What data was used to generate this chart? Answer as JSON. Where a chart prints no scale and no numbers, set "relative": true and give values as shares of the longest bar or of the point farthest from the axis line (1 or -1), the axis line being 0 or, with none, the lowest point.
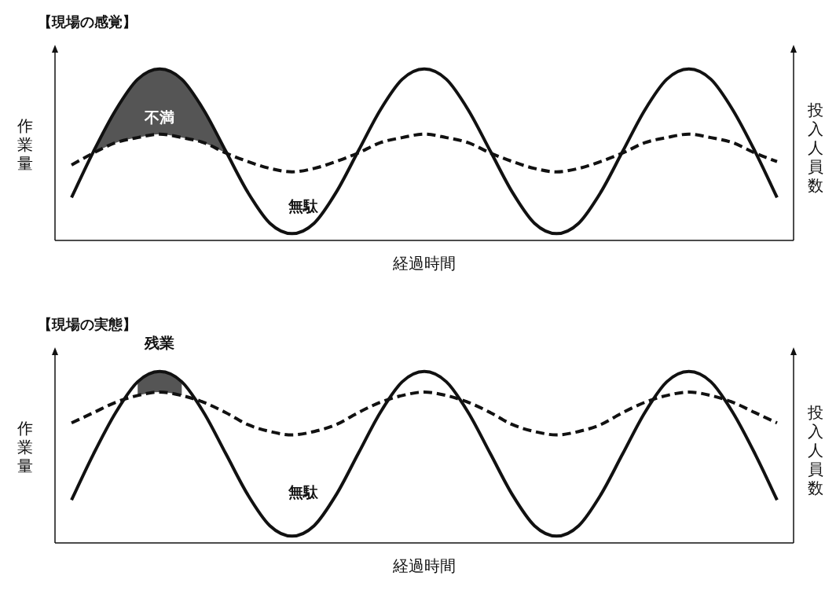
{
  "chart_data": [
    {
      "type": "line",
      "title": "【現場の感覚】",
      "xlabel": "経過時間",
      "ylabel": "作業量",
      "y2label": "投入人員数",
      "relative": true,
      "categories": [
        null,
        null,
        null,
        null,
        null,
        null,
        null,
        null,
        null,
        null,
        null,
        null,
        null,
        null,
        null,
        null,
        null,
        null,
        null,
        null,
        null,
        null,
        null,
        null,
        null,
        null,
        null,
        null,
        null,
        null,
        null,
        null,
        null
      ],
      "series": [
        {
          "color": "#111111",
          "line_style": "solid",
          "values": [
            0.25,
            0.52,
            0.76,
            0.94,
            1,
            0.94,
            0.76,
            0.52,
            0.28,
            0.1,
            0.04,
            0.1,
            0.28,
            0.52,
            0.76,
            0.94,
            1,
            0.94,
            0.76,
            0.52,
            0.28,
            0.1,
            0.04,
            0.1,
            0.28,
            0.52,
            0.76,
            0.94,
            1,
            0.94,
            0.76,
            0.52,
            0.25
          ]
        },
        {
          "color": "#111111",
          "line_style": "dashed",
          "values": [
            0.44,
            0.51,
            0.57,
            0.6,
            0.62,
            0.6,
            0.57,
            0.51,
            0.46,
            0.42,
            0.4,
            0.42,
            0.46,
            0.51,
            0.57,
            0.6,
            0.62,
            0.6,
            0.57,
            0.51,
            0.46,
            0.42,
            0.4,
            0.42,
            0.46,
            0.51,
            0.57,
            0.6,
            0.62,
            0.6,
            0.57,
            0.51,
            0.46
          ],
          "lower": [
            null,
            0.51,
            0.57,
            0.6,
            0.62,
            0.6,
            0.57,
            0.51,
            null,
            null,
            null,
            null,
            null,
            null,
            null,
            null,
            null,
            null,
            null,
            null,
            null,
            null,
            null,
            null,
            null,
            null,
            null,
            null,
            null,
            null,
            null,
            null,
            null
          ],
          "upper": [
            null,
            0.52,
            0.76,
            0.94,
            1,
            0.94,
            0.76,
            0.52,
            null,
            null,
            null,
            null,
            null,
            null,
            null,
            null,
            null,
            null,
            null,
            null,
            null,
            null,
            null,
            null,
            null,
            null,
            null,
            null,
            null,
            null,
            null,
            null,
            null
          ]
        }
      ],
      "annotations": [
        "不満",
        "無駄"
      ]
    },
    {
      "type": "line",
      "title": "【現場の実態】",
      "xlabel": "経過時間",
      "ylabel": "作業量",
      "y2label": "投入人員数",
      "relative": true,
      "categories": [
        null,
        null,
        null,
        null,
        null,
        null,
        null,
        null,
        null,
        null,
        null,
        null,
        null,
        null,
        null,
        null,
        null,
        null,
        null,
        null,
        null,
        null,
        null,
        null,
        null,
        null,
        null,
        null,
        null,
        null,
        null,
        null,
        null
      ],
      "series": [
        {
          "color": "#111111",
          "line_style": "solid",
          "values": [
            0.25,
            0.52,
            0.76,
            0.94,
            1,
            0.94,
            0.76,
            0.52,
            0.28,
            0.1,
            0.04,
            0.1,
            0.28,
            0.52,
            0.76,
            0.94,
            1,
            0.94,
            0.76,
            0.52,
            0.28,
            0.1,
            0.04,
            0.1,
            0.28,
            0.52,
            0.76,
            0.94,
            1,
            0.94,
            0.76,
            0.52,
            0.25
          ]
        },
        {
          "color": "#111111",
          "line_style": "dashed",
          "values": [
            0.7,
            0.76,
            0.82,
            0.86,
            0.88,
            0.86,
            0.82,
            0.76,
            0.69,
            0.65,
            0.63,
            0.65,
            0.69,
            0.76,
            0.82,
            0.86,
            0.88,
            0.86,
            0.82,
            0.76,
            0.69,
            0.65,
            0.63,
            0.65,
            0.69,
            0.76,
            0.82,
            0.86,
            0.88,
            0.86,
            0.82,
            0.76,
            0.7
          ],
          "lower": [
            null,
            null,
            null,
            0.86,
            0.88,
            0.86,
            null,
            null,
            null,
            null,
            null,
            null,
            null,
            null,
            null,
            null,
            null,
            null,
            null,
            null,
            null,
            null,
            null,
            null,
            null,
            null,
            null,
            null,
            null,
            null,
            null,
            null,
            null
          ],
          "upper": [
            null,
            null,
            null,
            0.94,
            1,
            0.94,
            null,
            null,
            null,
            null,
            null,
            null,
            null,
            null,
            null,
            null,
            null,
            null,
            null,
            null,
            null,
            null,
            null,
            null,
            null,
            null,
            null,
            null,
            null,
            null,
            null,
            null,
            null
          ]
        }
      ],
      "annotations": [
        "残業",
        "無駄"
      ]
    }
  ]
}
